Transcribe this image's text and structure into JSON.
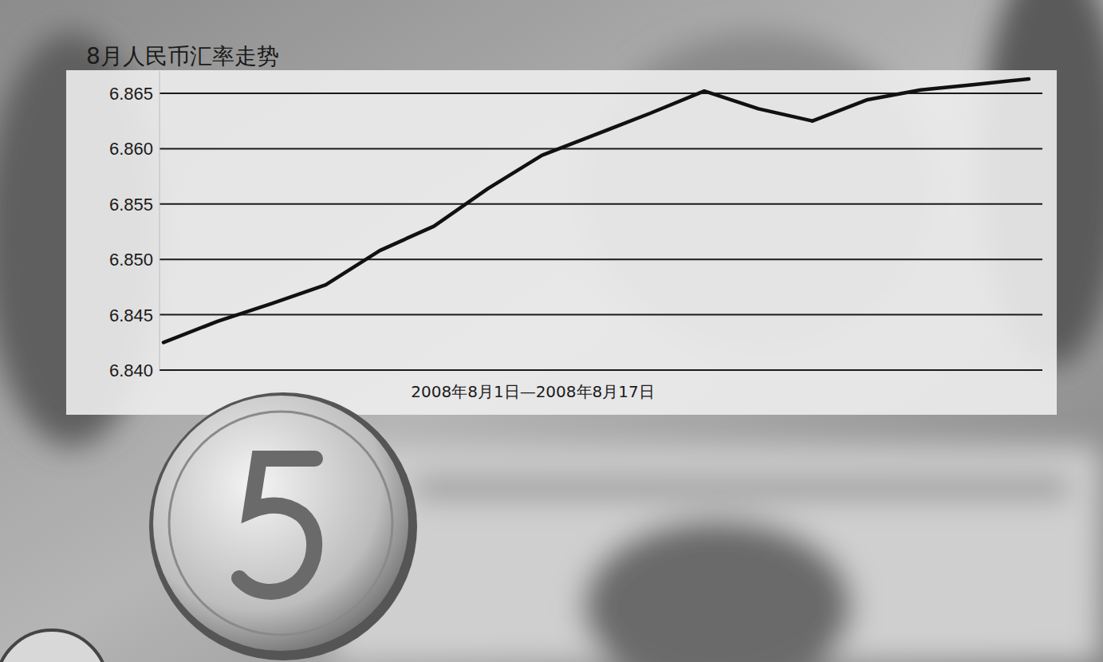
{
  "chart_data": {
    "type": "line",
    "title": "8月人民币汇率走势",
    "xlabel": "2008年8月1日—2008年8月17日",
    "categories": [
      null,
      null,
      null,
      null,
      null,
      null,
      null,
      null,
      null,
      null,
      null,
      null,
      null,
      null,
      null,
      null,
      null
    ],
    "values": [
      6.8425,
      6.8444,
      6.846,
      6.8477,
      6.8508,
      6.853,
      6.8564,
      6.8594,
      6.8613,
      6.8632,
      6.8652,
      6.8636,
      6.8625,
      6.8644,
      6.8653,
      6.8658,
      6.8663
    ],
    "color": "#111111",
    "ylim": [
      6.84,
      6.867
    ],
    "yticks": [
      {
        "value": 6.84,
        "label": "6.840"
      },
      6.845,
      {
        "value": 6.85,
        "label": "6.850"
      },
      6.855,
      {
        "value": 6.86,
        "label": "6.860"
      },
      6.865
    ],
    "grid": true
  }
}
